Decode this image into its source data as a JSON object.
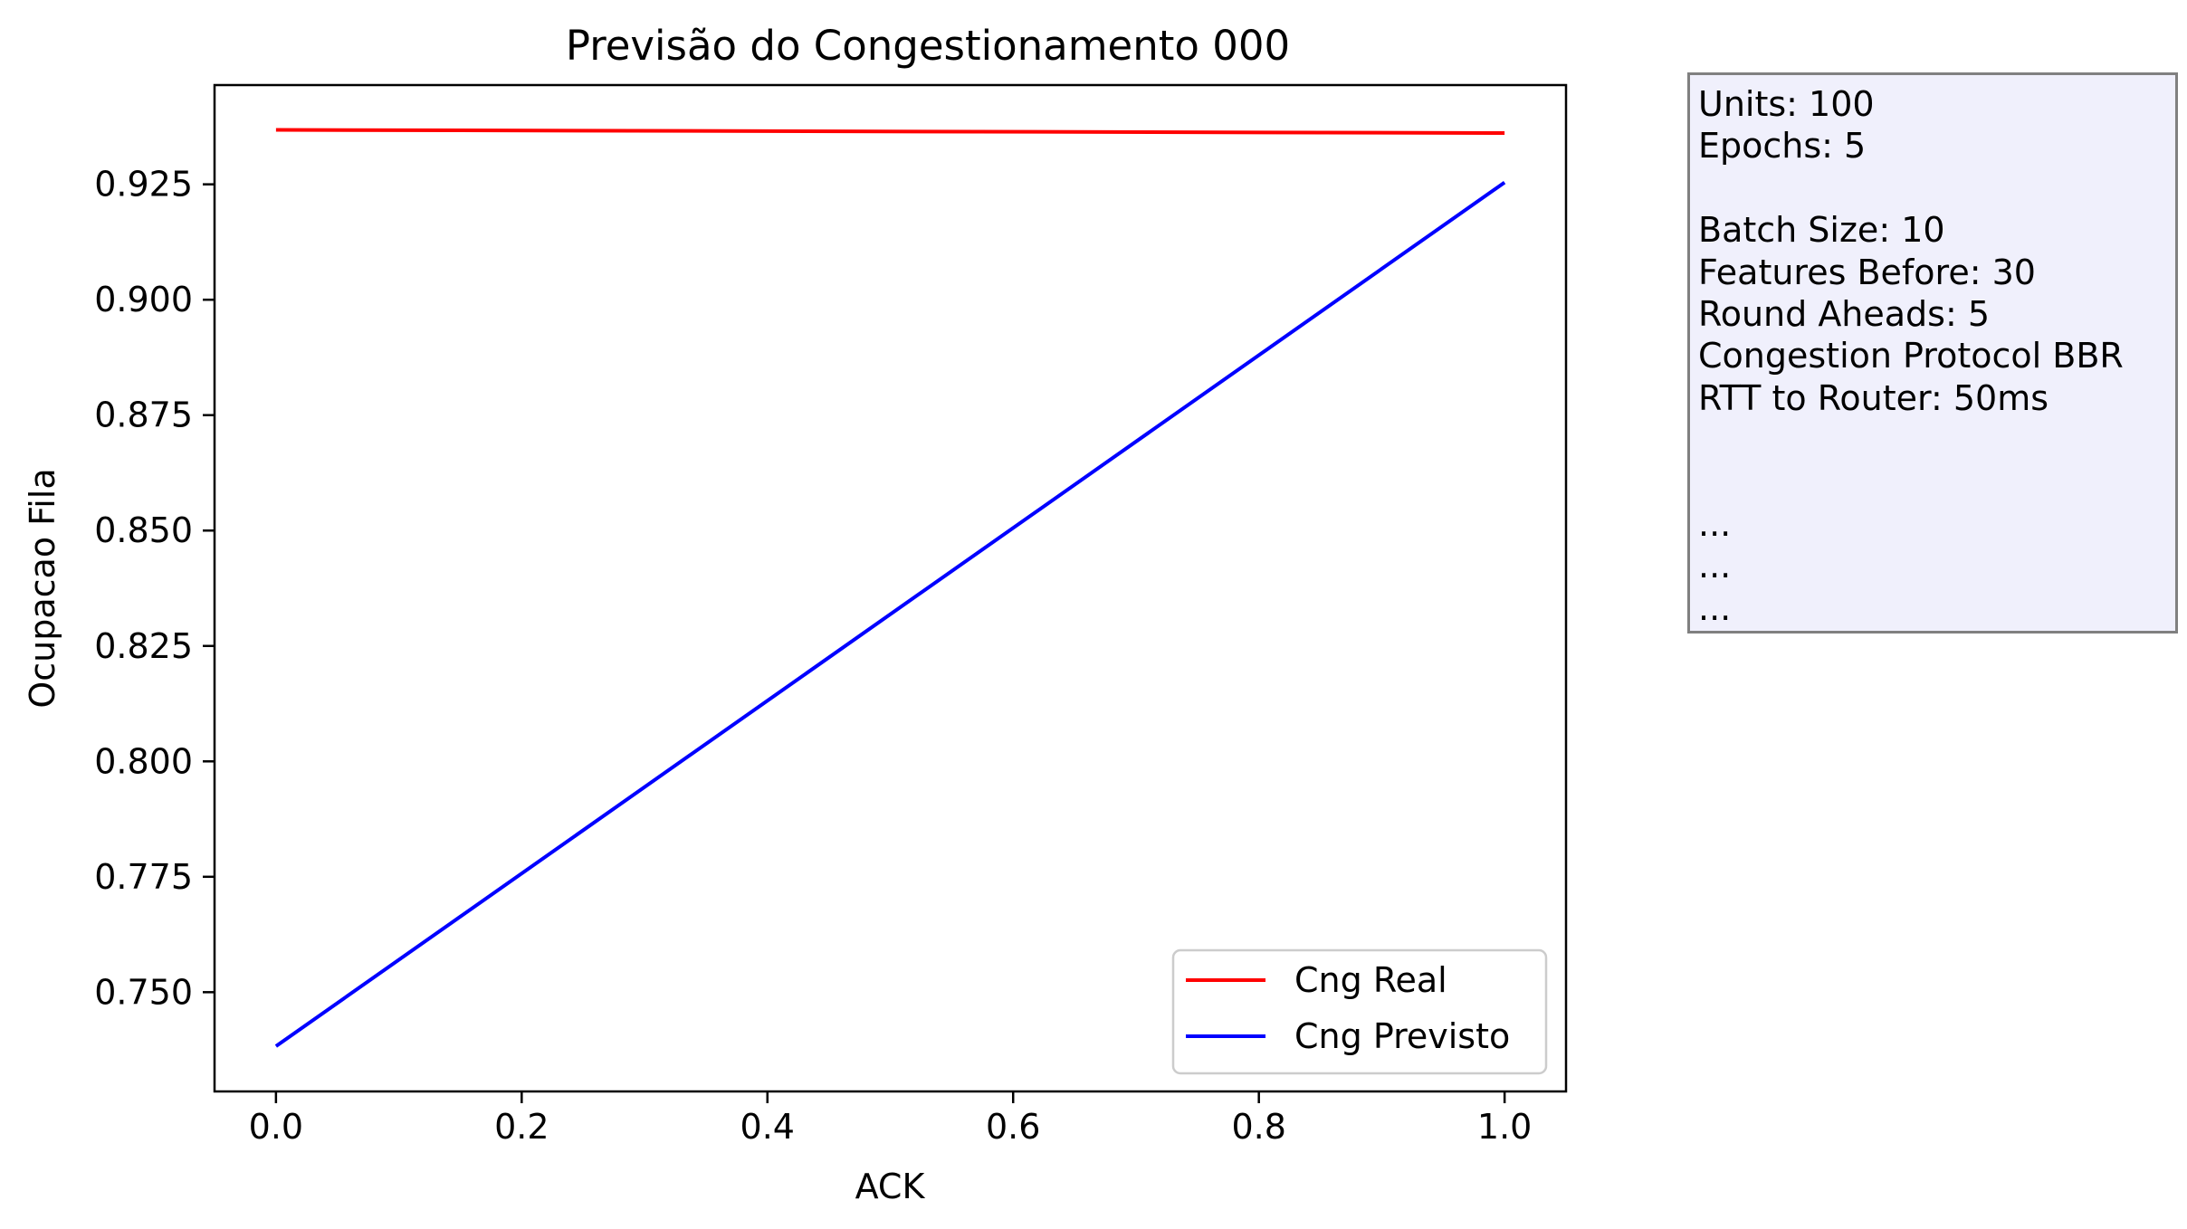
{
  "chart_data": {
    "type": "line",
    "title": "Previsão do Congestionamento 000",
    "xlabel": "ACK",
    "ylabel": "Ocupacao Fila",
    "x": [
      0.0,
      1.0
    ],
    "xlim": [
      -0.05,
      1.05
    ],
    "ylim": [
      0.7285,
      0.9465
    ],
    "xticks": [
      0.0,
      0.2,
      0.4,
      0.6,
      0.8,
      1.0
    ],
    "xtick_labels": [
      "0.0",
      "0.2",
      "0.4",
      "0.6",
      "0.8",
      "1.0"
    ],
    "yticks": [
      0.75,
      0.775,
      0.8,
      0.825,
      0.85,
      0.875,
      0.9,
      0.925
    ],
    "ytick_labels": [
      "0.750",
      "0.775",
      "0.800",
      "0.825",
      "0.850",
      "0.875",
      "0.900",
      "0.925"
    ],
    "series": [
      {
        "name": "Cng Real",
        "color": "#ff0000",
        "values": [
          0.9368,
          0.9361
        ]
      },
      {
        "name": "Cng Previsto",
        "color": "#0000ff",
        "values": [
          0.7383,
          0.9254
        ]
      }
    ],
    "legend_position": "lower right",
    "grid": false
  },
  "info_box": {
    "lines": [
      "Units: 100",
      "Epochs: 5",
      "",
      "Batch Size: 10",
      "Features Before: 30",
      "Round Aheads: 5",
      "Congestion Protocol BBR",
      "RTT to Router: 50ms",
      "",
      "",
      "...",
      "...",
      "..."
    ],
    "background": "#f0f0fc",
    "border_color": "#808080"
  }
}
